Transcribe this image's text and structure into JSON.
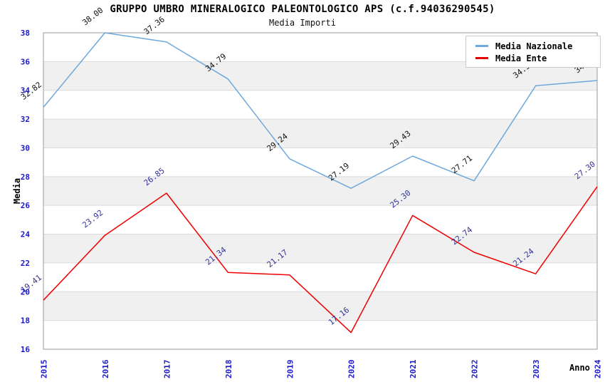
{
  "chart_data": {
    "type": "line",
    "title": "GRUPPO UMBRO MINERALOGICO PALEONTOLOGICO APS (c.f.94036290545)",
    "subtitle": "Media Importi",
    "xlabel": "Anno",
    "ylabel": "Media",
    "categories": [
      "2015",
      "2016",
      "2017",
      "2018",
      "2019",
      "2020",
      "2021",
      "2022",
      "2023",
      "2024"
    ],
    "series": [
      {
        "name": "Media Nazionale",
        "color": "#6fa8dc",
        "label_color": "#111111",
        "values": [
          32.82,
          38.0,
          37.36,
          34.79,
          29.24,
          27.19,
          29.43,
          27.71,
          34.32,
          34.68
        ]
      },
      {
        "name": "Media Ente",
        "color": "#ee0000",
        "label_color": "#333399",
        "values": [
          19.41,
          23.92,
          26.85,
          21.34,
          21.17,
          17.16,
          25.3,
          22.74,
          21.24,
          27.3
        ]
      }
    ],
    "ylim": [
      16,
      38
    ],
    "ytick_step": 2,
    "grid": true,
    "legend_position": "top-right",
    "colors": {
      "band": "#f0f0f0",
      "gridline": "#dcdcdc",
      "plot_border": "#999999",
      "axis_text": "#1a1acc",
      "background": "#ffffff"
    }
  }
}
